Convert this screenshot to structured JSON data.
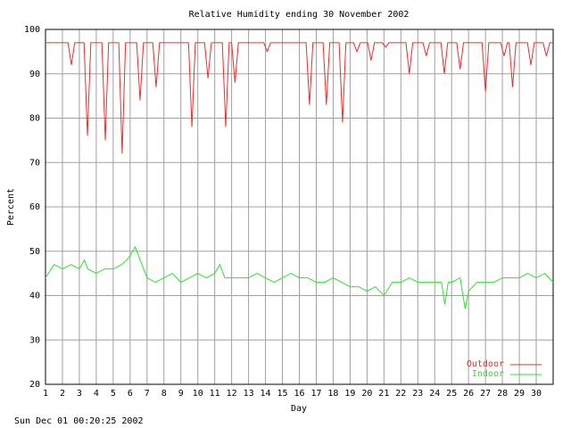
{
  "chart_data": {
    "type": "line",
    "title": "Relative Humidity ending 30 November 2002",
    "x_label": "Day",
    "y_label": "Percent",
    "footer": "Sun Dec 01 00:20:25 2002",
    "xlim": [
      1,
      31
    ],
    "ylim": [
      20,
      100
    ],
    "xticks": [
      1,
      2,
      3,
      4,
      5,
      6,
      7,
      8,
      9,
      10,
      11,
      12,
      13,
      14,
      15,
      16,
      17,
      18,
      19,
      20,
      21,
      22,
      23,
      24,
      25,
      26,
      27,
      28,
      29,
      30
    ],
    "yticks": [
      20,
      30,
      40,
      50,
      60,
      70,
      80,
      90,
      100
    ],
    "grid": true,
    "legend": "bottom-right",
    "series": [
      {
        "name": "Outdoor",
        "color": "#e83030",
        "x": [
          1,
          2.33,
          2.53,
          2.73,
          3.28,
          3.48,
          3.68,
          4.33,
          4.53,
          4.73,
          5.33,
          5.53,
          5.73,
          6.39,
          6.59,
          6.79,
          7.34,
          7.54,
          7.74,
          9.45,
          9.65,
          9.85,
          10.4,
          10.6,
          10.8,
          11.45,
          11.65,
          11.85,
          12.0,
          12.2,
          12.4,
          13.9,
          14.1,
          14.3,
          16.4,
          16.6,
          16.8,
          17.4,
          17.6,
          17.8,
          18.35,
          18.55,
          18.75,
          19.2,
          19.4,
          19.6,
          20.04,
          20.24,
          20.44,
          20.9,
          21.1,
          21.3,
          22.3,
          22.5,
          22.7,
          23.3,
          23.5,
          23.7,
          24.37,
          24.57,
          24.77,
          25.3,
          25.5,
          25.7,
          26.8,
          27.0,
          27.2,
          27.9,
          28.1,
          28.3,
          28.4,
          28.6,
          28.8,
          29.48,
          29.68,
          29.88,
          30.4,
          30.6,
          30.8,
          31
        ],
        "values": [
          97,
          97,
          92,
          97,
          97,
          76,
          97,
          97,
          75,
          97,
          97,
          72,
          97,
          97,
          84,
          97,
          97,
          87,
          97,
          97,
          78,
          97,
          97,
          89,
          97,
          97,
          78,
          97,
          97,
          88,
          97,
          97,
          95,
          97,
          97,
          83,
          97,
          97,
          83,
          97,
          97,
          79,
          97,
          97,
          95,
          97,
          97,
          93,
          97,
          97,
          96,
          97,
          97,
          90,
          97,
          97,
          94,
          97,
          97,
          90,
          97,
          97,
          91,
          97,
          97,
          86,
          97,
          97,
          94,
          97,
          97,
          87,
          97,
          97,
          92,
          97,
          97,
          94,
          97,
          97
        ]
      },
      {
        "name": "Indoor",
        "color": "#30e030",
        "x": [
          1,
          1.5,
          2,
          2.5,
          3,
          3.3,
          3.5,
          4,
          4.5,
          5,
          5.5,
          5.8,
          6,
          6.3,
          6.6,
          7,
          7.5,
          8,
          8.5,
          9,
          9.5,
          10,
          10.5,
          11,
          11.3,
          11.6,
          12,
          12.5,
          13,
          13.5,
          14,
          14.5,
          15,
          15.5,
          16,
          16.5,
          17,
          17.5,
          18,
          18.5,
          19,
          19.5,
          20,
          20.5,
          21,
          21.5,
          22,
          22.5,
          23,
          23.5,
          24,
          24.4,
          24.6,
          24.8,
          25,
          25.5,
          25.8,
          26,
          26.5,
          27,
          27.5,
          28,
          28.5,
          29,
          29.5,
          30,
          30.5,
          31
        ],
        "values": [
          44,
          47,
          46,
          47,
          46,
          48,
          46,
          45,
          46,
          46,
          47,
          48,
          49,
          51,
          48,
          44,
          43,
          44,
          45,
          43,
          44,
          45,
          44,
          45,
          47,
          44,
          44,
          44,
          44,
          45,
          44,
          43,
          44,
          45,
          44,
          44,
          43,
          43,
          44,
          43,
          42,
          42,
          41,
          42,
          40,
          43,
          43,
          44,
          43,
          43,
          43,
          43,
          38,
          43,
          43,
          44,
          37,
          41,
          43,
          43,
          43,
          44,
          44,
          44,
          45,
          44,
          45,
          43
        ]
      }
    ]
  }
}
